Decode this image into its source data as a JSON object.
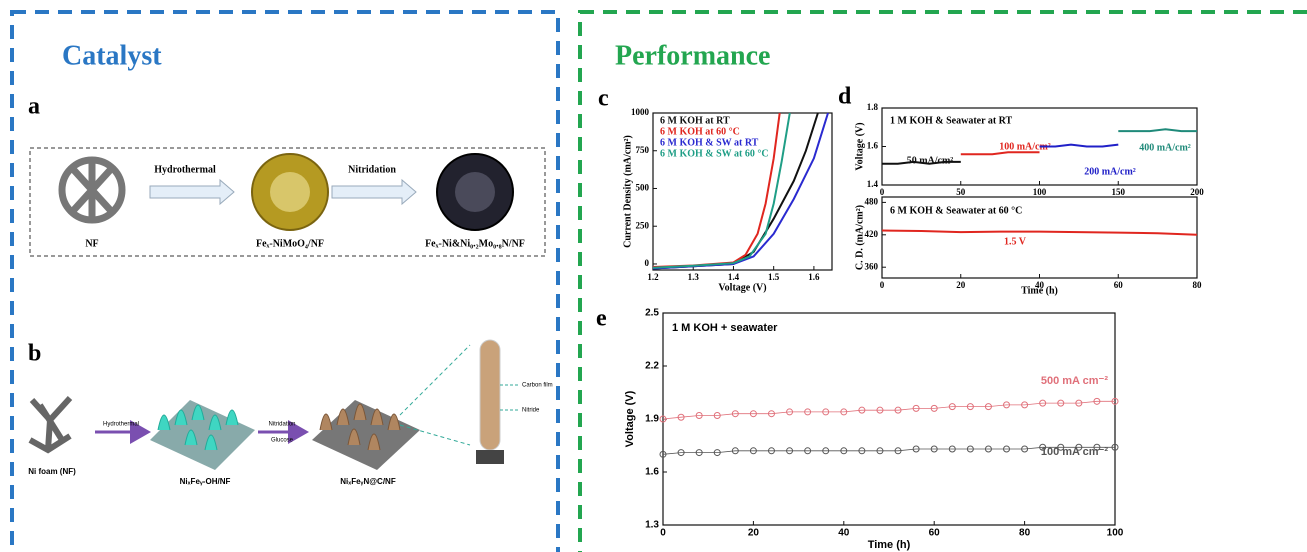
{
  "left": {
    "title": "Catalyst",
    "a": {
      "label": "a",
      "steps": [
        "NF",
        "Feₓ-NiMoO₄/NF",
        "Feₓ-Ni&Ni₀.₂Mo₀.₈N/NF"
      ],
      "arrows": [
        "Hydrothermal",
        "Nitridation"
      ]
    },
    "b": {
      "label": "b",
      "steps": [
        "Ni foam (NF)",
        "NiₓFeᵧ-OH/NF",
        "NiₓFeᵧN@C/NF"
      ],
      "arrows": [
        "Hydrothermal",
        "Nitridation",
        "Glucose"
      ],
      "callouts": [
        "Carbon film",
        "Nitride"
      ]
    }
  },
  "right": {
    "title": "Performance"
  },
  "chart_data": [
    {
      "type": "line",
      "panel_label": "c",
      "xlabel": "Voltage (V)",
      "ylabel": "Current Density (mA/cm²)",
      "xlim": [
        1.2,
        1.645
      ],
      "ylim": [
        -40,
        1000
      ],
      "xticks": [
        1.2,
        1.3,
        1.4,
        1.5,
        1.6
      ],
      "yticks": [
        0,
        250,
        500,
        750,
        1000
      ],
      "legend": "upper left",
      "series": [
        {
          "name": "6 M KOH at RT",
          "color": "#111111",
          "x": [
            1.2,
            1.3,
            1.4,
            1.45,
            1.5,
            1.55,
            1.58,
            1.61
          ],
          "values": [
            -30,
            -15,
            0,
            80,
            300,
            550,
            750,
            1000
          ]
        },
        {
          "name": "6 M KOH at 60 °C",
          "color": "#e0261f",
          "x": [
            1.2,
            1.3,
            1.4,
            1.43,
            1.46,
            1.48,
            1.5,
            1.515
          ],
          "values": [
            -20,
            -10,
            10,
            60,
            200,
            400,
            700,
            1000
          ]
        },
        {
          "name": "6 M KOH & SW at RT",
          "color": "#2a2ad0",
          "x": [
            1.2,
            1.3,
            1.4,
            1.45,
            1.5,
            1.55,
            1.6,
            1.635
          ],
          "values": [
            -30,
            -15,
            0,
            50,
            200,
            430,
            700,
            1000
          ]
        },
        {
          "name": "6 M KOH & SW at 60 °C",
          "color": "#1f9e86",
          "x": [
            1.2,
            1.3,
            1.4,
            1.44,
            1.48,
            1.5,
            1.52,
            1.54
          ],
          "values": [
            -25,
            -12,
            5,
            50,
            200,
            400,
            680,
            1000
          ]
        }
      ]
    },
    {
      "type": "line",
      "panel_label": "d",
      "ylabel": "Voltage (V)",
      "annotation": "1 M KOH & Seawater at RT",
      "xlim": [
        0,
        200
      ],
      "ylim": [
        1.4,
        1.8
      ],
      "xticks": [
        0,
        50,
        100,
        150,
        200
      ],
      "yticks": [
        1.4,
        1.6,
        1.8
      ],
      "legend": "inline",
      "series": [
        {
          "name": "50 mA/cm²",
          "color": "#111111",
          "x": [
            0,
            10,
            20,
            30,
            40,
            50
          ],
          "values": [
            1.51,
            1.51,
            1.52,
            1.51,
            1.52,
            1.52
          ]
        },
        {
          "name": "100 mA/cm²",
          "color": "#e0261f",
          "x": [
            50,
            60,
            70,
            80,
            90,
            100
          ],
          "values": [
            1.56,
            1.56,
            1.56,
            1.57,
            1.57,
            1.57
          ]
        },
        {
          "name": "200 mA/cm²",
          "color": "#2020c8",
          "x": [
            100,
            110,
            120,
            130,
            140,
            150
          ],
          "values": [
            1.6,
            1.6,
            1.61,
            1.6,
            1.6,
            1.61
          ]
        },
        {
          "name": "400 mA/cm²",
          "color": "#1f8a7a",
          "x": [
            150,
            160,
            170,
            180,
            190,
            200
          ],
          "values": [
            1.68,
            1.68,
            1.68,
            1.69,
            1.68,
            1.68
          ]
        }
      ]
    },
    {
      "type": "line",
      "xlabel": "Time (h)",
      "ylabel": "C. D. (mA/cm²)",
      "annotation": "6 M KOH & Seawater at 60 °C",
      "xlim": [
        0,
        80
      ],
      "ylim": [
        340,
        490
      ],
      "xticks": [
        0,
        20,
        40,
        60,
        80
      ],
      "yticks": [
        360,
        420,
        480
      ],
      "legend": "inline",
      "series": [
        {
          "name": "1.5 V",
          "color": "#e0261f",
          "x": [
            0,
            10,
            20,
            30,
            40,
            50,
            60,
            70,
            80
          ],
          "values": [
            428,
            427,
            425,
            426,
            426,
            425,
            424,
            423,
            420
          ]
        }
      ]
    },
    {
      "type": "scatter",
      "panel_label": "e",
      "xlabel": "Time (h)",
      "ylabel": "Voltage (V)",
      "annotation": "1 M KOH + seawater",
      "xlim": [
        0,
        100
      ],
      "ylim": [
        1.3,
        2.5
      ],
      "xticks": [
        0,
        20,
        40,
        60,
        80,
        100
      ],
      "yticks": [
        1.3,
        1.6,
        1.9,
        2.2,
        2.5
      ],
      "legend": "inline",
      "series": [
        {
          "name": "500 mA cm⁻²",
          "color": "#e0707a",
          "x": [
            0,
            4,
            8,
            12,
            16,
            20,
            24,
            28,
            32,
            36,
            40,
            44,
            48,
            52,
            56,
            60,
            64,
            68,
            72,
            76,
            80,
            84,
            88,
            92,
            96,
            100
          ],
          "values": [
            1.9,
            1.91,
            1.92,
            1.92,
            1.93,
            1.93,
            1.93,
            1.94,
            1.94,
            1.94,
            1.94,
            1.95,
            1.95,
            1.95,
            1.96,
            1.96,
            1.97,
            1.97,
            1.97,
            1.98,
            1.98,
            1.99,
            1.99,
            1.99,
            2.0,
            2.0
          ]
        },
        {
          "name": "100 mA cm⁻²",
          "color": "#555555",
          "x": [
            0,
            4,
            8,
            12,
            16,
            20,
            24,
            28,
            32,
            36,
            40,
            44,
            48,
            52,
            56,
            60,
            64,
            68,
            72,
            76,
            80,
            84,
            88,
            92,
            96,
            100
          ],
          "values": [
            1.7,
            1.71,
            1.71,
            1.71,
            1.72,
            1.72,
            1.72,
            1.72,
            1.72,
            1.72,
            1.72,
            1.72,
            1.72,
            1.72,
            1.73,
            1.73,
            1.73,
            1.73,
            1.73,
            1.73,
            1.73,
            1.74,
            1.74,
            1.74,
            1.74,
            1.74
          ]
        }
      ]
    }
  ]
}
